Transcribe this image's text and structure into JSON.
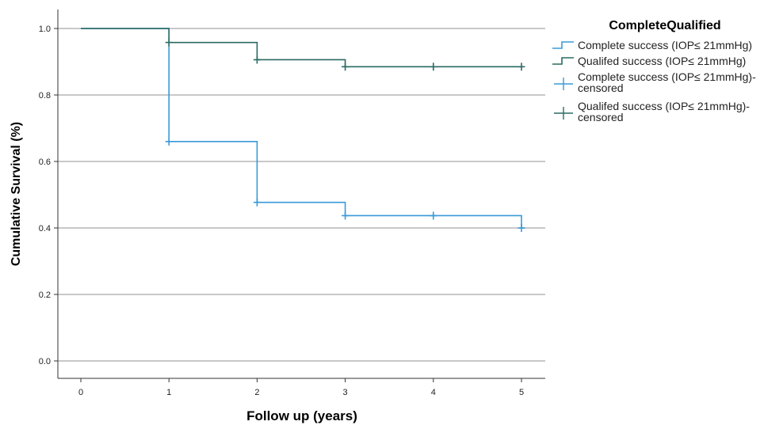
{
  "chart_data": {
    "type": "line",
    "subtype": "step (Kaplan-Meier survival curve)",
    "xlabel": "Follow up (years)",
    "ylabel": "Cumulative Survival (%)",
    "xlim": [
      0,
      5
    ],
    "ylim": [
      0,
      1.0
    ],
    "x_ticks": [
      "0",
      "1",
      "2",
      "3",
      "4",
      "5"
    ],
    "y_ticks": [
      "0.0",
      "0.2",
      "0.4",
      "0.6",
      "0.8",
      "1.0"
    ],
    "grid": "horizontal",
    "legend_title": "CompleteQualified",
    "legend_position": "top-right",
    "series": [
      {
        "name": "Complete success (IOP≤ 21mmHg)",
        "color": "#3a9ad9",
        "steps": [
          [
            0,
            1.0
          ],
          [
            1,
            0.66
          ],
          [
            2,
            0.477
          ],
          [
            3,
            0.437
          ],
          [
            5,
            0.4
          ]
        ],
        "censored": [
          [
            1,
            0.66
          ],
          [
            2,
            0.477
          ],
          [
            3,
            0.437
          ],
          [
            4,
            0.437
          ],
          [
            5,
            0.4
          ]
        ]
      },
      {
        "name": "Qualifed success (IOP≤ 21mmHg)",
        "color": "#2a6b62",
        "steps": [
          [
            0,
            1.0
          ],
          [
            1,
            0.958
          ],
          [
            2,
            0.906
          ],
          [
            3,
            0.885
          ]
        ],
        "end_x": 5,
        "censored": [
          [
            1,
            0.958
          ],
          [
            2,
            0.906
          ],
          [
            3,
            0.885
          ],
          [
            4,
            0.885
          ],
          [
            5,
            0.885
          ]
        ]
      }
    ],
    "legend_entries": [
      {
        "label": "Complete success (IOP≤ 21mmHg)",
        "kind": "line",
        "color": "#3a9ad9"
      },
      {
        "label": "Qualifed success (IOP≤ 21mmHg)",
        "kind": "line",
        "color": "#2a6b62"
      },
      {
        "label": "Complete success (IOP≤ 21mmHg)-",
        "label2": "censored",
        "kind": "censor",
        "color": "#3a9ad9"
      },
      {
        "label": "Qualifed success (IOP≤ 21mmHg)-",
        "label2": "censored",
        "kind": "censor",
        "color": "#2a6b62"
      }
    ]
  }
}
